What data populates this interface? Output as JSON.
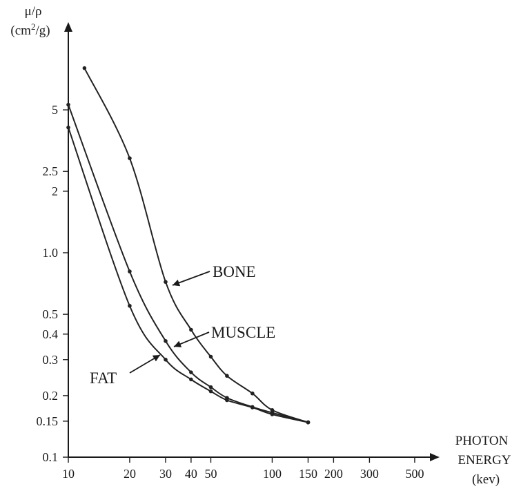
{
  "chart_data": {
    "type": "line",
    "title": "",
    "ylabel": "μ/ρ",
    "ylabel_unit_base": "(cm",
    "ylabel_unit_sup": "2",
    "ylabel_unit_tail": "/g)",
    "xlabel_lines": [
      "PHOTON",
      "ENERGY",
      "(kev)"
    ],
    "x_scale": "log",
    "y_scale": "log",
    "xlim": [
      10,
      580
    ],
    "ylim": [
      0.1,
      10
    ],
    "x_ticks": [
      10,
      20,
      30,
      40,
      50,
      100,
      150,
      200,
      300,
      500
    ],
    "x_tick_labels": [
      "10",
      "20",
      "30",
      "40",
      "50",
      "100",
      "150",
      "200",
      "300",
      "500"
    ],
    "y_ticks": [
      0.1,
      0.15,
      0.2,
      0.3,
      0.4,
      0.5,
      1.0,
      2,
      2.5,
      5
    ],
    "y_tick_labels": [
      "0.1",
      "0.15",
      "0.2",
      "0.3",
      "0.4",
      "0.5",
      "1.0",
      "2",
      "2.5",
      "5"
    ],
    "grid": false,
    "series": [
      {
        "name": "BONE",
        "x": [
          12,
          20,
          30,
          40,
          50,
          60,
          80,
          100,
          150
        ],
        "y": [
          8.0,
          2.9,
          0.72,
          0.42,
          0.31,
          0.25,
          0.205,
          0.17,
          0.148
        ]
      },
      {
        "name": "MUSCLE",
        "x": [
          10,
          20,
          30,
          40,
          50,
          60,
          80,
          100,
          150
        ],
        "y": [
          5.3,
          0.81,
          0.37,
          0.26,
          0.22,
          0.195,
          0.176,
          0.165,
          0.148
        ]
      },
      {
        "name": "FAT",
        "x": [
          10,
          20,
          30,
          40,
          50,
          60,
          80,
          100,
          150
        ],
        "y": [
          4.1,
          0.55,
          0.3,
          0.24,
          0.21,
          0.19,
          0.175,
          0.162,
          0.148
        ]
      }
    ]
  }
}
